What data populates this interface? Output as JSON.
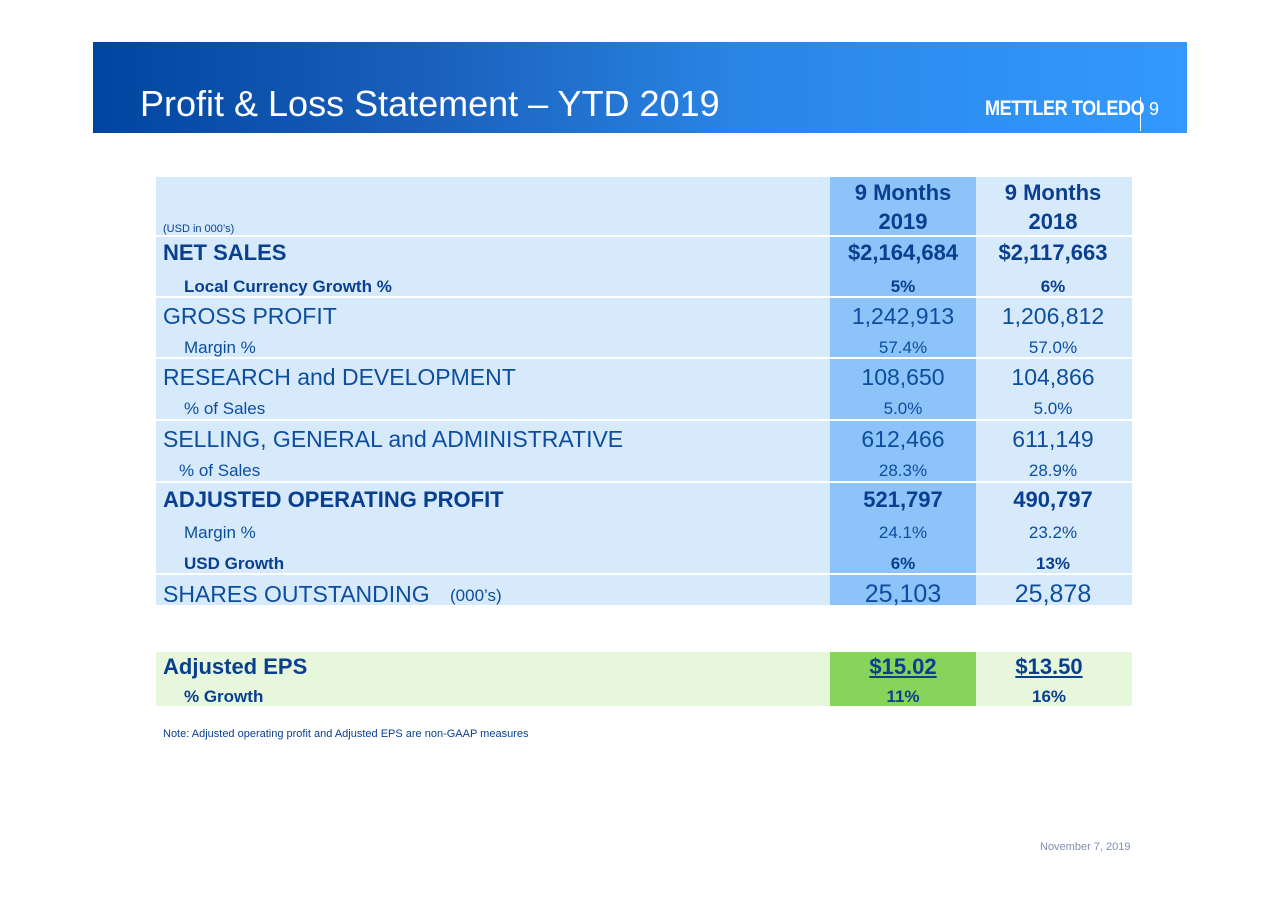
{
  "header": {
    "title": "Profit & Loss Statement – YTD 2019",
    "logo": "METTLER TOLEDO",
    "page_number": "9"
  },
  "table": {
    "unit_note": "(USD in 000’s)",
    "columns": [
      {
        "period": "9 Months",
        "year": "2019"
      },
      {
        "period": "9 Months",
        "year": "2018"
      }
    ],
    "rows": [
      {
        "label": "NET SALES",
        "values": [
          "$2,164,684",
          "$2,117,663"
        ]
      },
      {
        "label": "Local Currency Growth %",
        "values": [
          "5%",
          "6%"
        ]
      },
      {
        "label": "GROSS PROFIT",
        "values": [
          "1,242,913",
          "1,206,812"
        ]
      },
      {
        "label": "Margin %",
        "values": [
          "57.4%",
          "57.0%"
        ]
      },
      {
        "label": "RESEARCH and DEVELOPMENT",
        "values": [
          "108,650",
          "104,866"
        ]
      },
      {
        "label": "% of Sales",
        "values": [
          "5.0%",
          "5.0%"
        ]
      },
      {
        "label": "SELLING, GENERAL and ADMINISTRATIVE",
        "values": [
          "612,466",
          "611,149"
        ]
      },
      {
        "label": "% of Sales",
        "values": [
          "28.3%",
          "28.9%"
        ]
      },
      {
        "label": "ADJUSTED OPERATING PROFIT",
        "values": [
          "521,797",
          "490,797"
        ]
      },
      {
        "label": "Margin %",
        "values": [
          "24.1%",
          "23.2%"
        ]
      },
      {
        "label": "USD Growth",
        "values": [
          "6%",
          "13%"
        ]
      },
      {
        "label": "SHARES OUTSTANDING",
        "label_note": "(000’s)",
        "values": [
          "25,103",
          "25,878"
        ]
      }
    ]
  },
  "eps_table": {
    "rows": [
      {
        "label": "Adjusted EPS",
        "values": [
          "$15.02",
          "$13.50"
        ]
      },
      {
        "label": "% Growth",
        "values": [
          "11%",
          "16%"
        ]
      }
    ]
  },
  "note": "Note:  Adjusted operating profit and Adjusted EPS are non-GAAP measures",
  "date": "November 7, 2019"
}
